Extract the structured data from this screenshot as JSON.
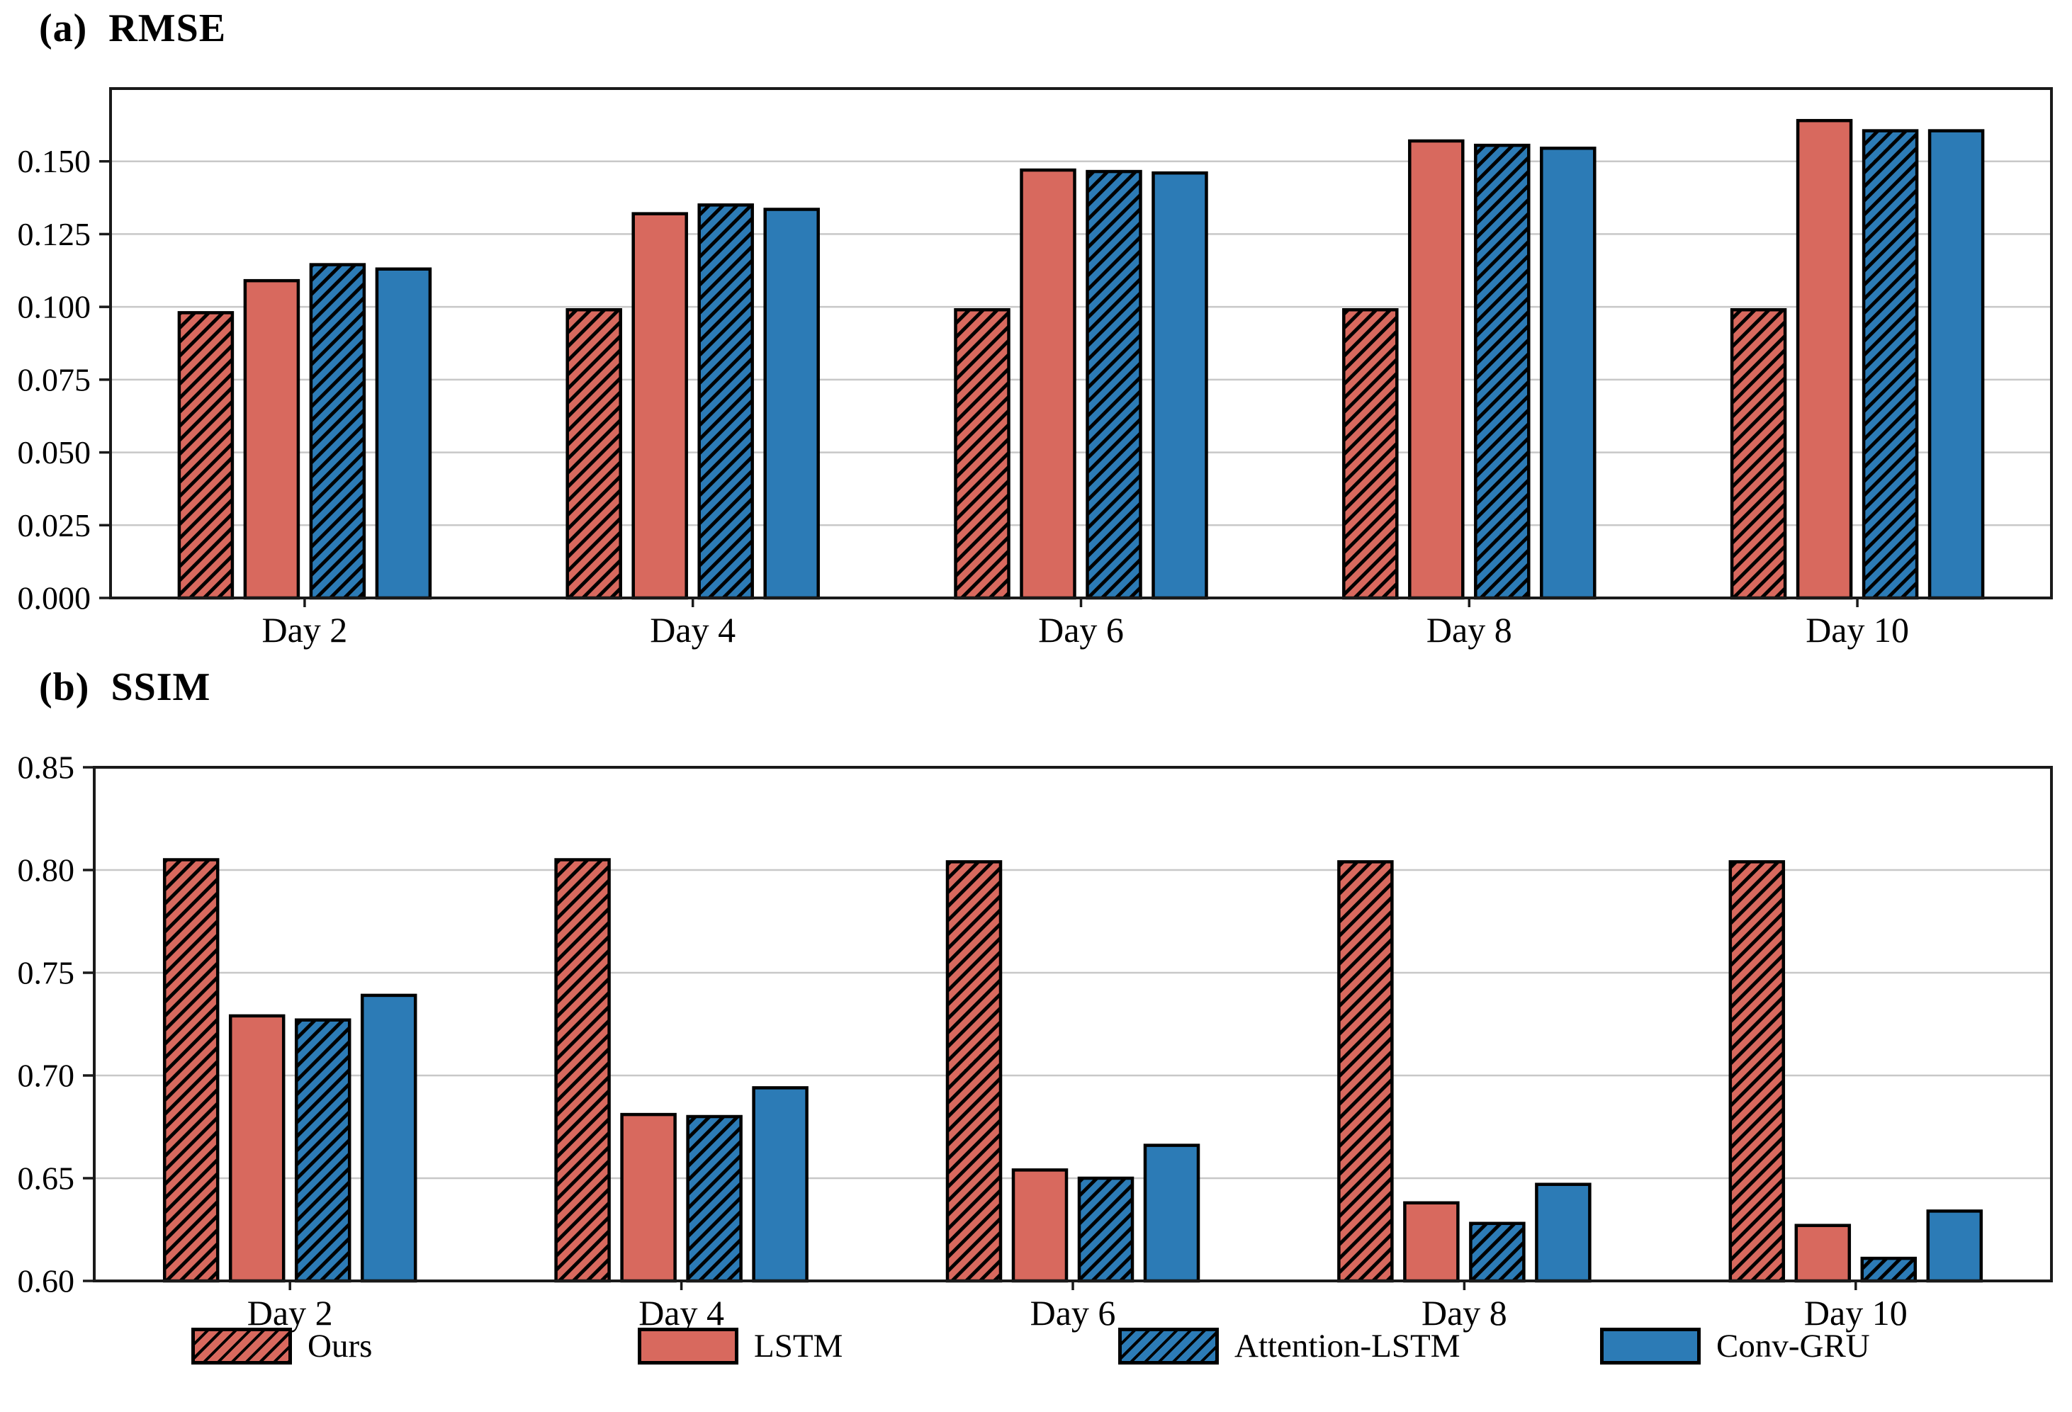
{
  "page": {
    "background": "#ffffff"
  },
  "panels": [
    {
      "title_prefix": "(a)",
      "title_label": "RMSE"
    },
    {
      "title_prefix": "(b)",
      "title_label": "SSIM"
    }
  ],
  "colors": {
    "red": "#D8695E",
    "blue": "#2C7BB6",
    "bar_edge": "#000000",
    "spine": "#1A1A1A",
    "grid": "#C8C8C8",
    "text": "#000000"
  },
  "legend": {
    "position": "below",
    "items": [
      {
        "label": "Ours",
        "color": "red",
        "hatch": true
      },
      {
        "label": "LSTM",
        "color": "red",
        "hatch": false
      },
      {
        "label": "Attention-LSTM",
        "color": "blue",
        "hatch": true
      },
      {
        "label": "Conv-GRU",
        "color": "blue",
        "hatch": false
      }
    ]
  },
  "chart_data": [
    {
      "type": "bar",
      "title": "(a) RMSE",
      "categories": [
        "Day 2",
        "Day 4",
        "Day 6",
        "Day 8",
        "Day 10"
      ],
      "series": [
        {
          "name": "Ours",
          "color": "red",
          "hatch": true,
          "values": [
            0.098,
            0.099,
            0.099,
            0.099,
            0.099
          ]
        },
        {
          "name": "LSTM",
          "color": "red",
          "hatch": false,
          "values": [
            0.109,
            0.132,
            0.147,
            0.157,
            0.164
          ]
        },
        {
          "name": "Attention-LSTM",
          "color": "blue",
          "hatch": true,
          "values": [
            0.1145,
            0.135,
            0.1465,
            0.1555,
            0.1605
          ]
        },
        {
          "name": "Conv-GRU",
          "color": "blue",
          "hatch": false,
          "values": [
            0.113,
            0.1335,
            0.146,
            0.1545,
            0.1605
          ]
        }
      ],
      "xlabel": "",
      "ylabel": "",
      "ylim": [
        0,
        0.175
      ],
      "grid": true,
      "yticks": [
        {
          "value": 0.0,
          "label": "0.000"
        },
        {
          "value": 0.025,
          "label": "0.025"
        },
        {
          "value": 0.05,
          "label": "0.050"
        },
        {
          "value": 0.075,
          "label": "0.075"
        },
        {
          "value": 0.1,
          "label": "0.100"
        },
        {
          "value": 0.125,
          "label": "0.125"
        },
        {
          "value": 0.15,
          "label": "0.150"
        }
      ]
    },
    {
      "type": "bar",
      "title": "(b) SSIM",
      "categories": [
        "Day 2",
        "Day 4",
        "Day 6",
        "Day 8",
        "Day 10"
      ],
      "series": [
        {
          "name": "Ours",
          "color": "red",
          "hatch": true,
          "values": [
            0.805,
            0.805,
            0.804,
            0.804,
            0.804
          ]
        },
        {
          "name": "LSTM",
          "color": "red",
          "hatch": false,
          "values": [
            0.729,
            0.681,
            0.654,
            0.638,
            0.627
          ]
        },
        {
          "name": "Attention-LSTM",
          "color": "blue",
          "hatch": true,
          "values": [
            0.727,
            0.68,
            0.65,
            0.628,
            0.611
          ]
        },
        {
          "name": "Conv-GRU",
          "color": "blue",
          "hatch": false,
          "values": [
            0.739,
            0.694,
            0.666,
            0.647,
            0.634
          ]
        }
      ],
      "xlabel": "",
      "ylabel": "",
      "ylim": [
        0.6,
        0.85
      ],
      "grid": true,
      "yticks": [
        {
          "value": 0.6,
          "label": "0.60"
        },
        {
          "value": 0.65,
          "label": "0.65"
        },
        {
          "value": 0.7,
          "label": "0.70"
        },
        {
          "value": 0.75,
          "label": "0.75"
        },
        {
          "value": 0.8,
          "label": "0.80"
        },
        {
          "value": 0.85,
          "label": "0.85"
        }
      ]
    }
  ]
}
